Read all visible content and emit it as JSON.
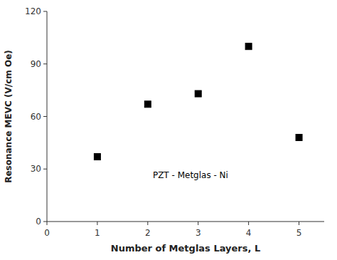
{
  "chart_data": {
    "type": "scatter",
    "x": [
      1,
      2,
      3,
      4,
      5
    ],
    "values": [
      37,
      67,
      73,
      100,
      48
    ],
    "xlabel": "Number of Metglas Layers,  L",
    "ylabel": "Resonance MEVC (V/cm Oe)",
    "annotations": [
      {
        "text": "PZT - Metglas - Ni",
        "x": 2.1,
        "y": 25
      }
    ],
    "xlim": [
      0,
      5.5
    ],
    "ylim": [
      0,
      120
    ],
    "xticks": [
      0,
      1,
      2,
      3,
      4,
      5
    ],
    "yticks": [
      0,
      30,
      60,
      90,
      120
    ],
    "marker": "square",
    "color": "#000000",
    "grid": false
  }
}
